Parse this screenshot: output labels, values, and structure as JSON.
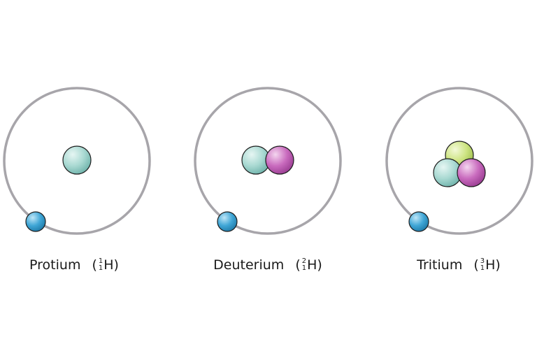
{
  "colors": {
    "orbit": "#a7a5aa",
    "electron": "#3b9fd1",
    "proton": "#9fd3cb",
    "neutron": "#c364b8",
    "neutron2": "#c8e07a",
    "outline": "#1d1d1d"
  },
  "isotopes": [
    {
      "name": "Protium",
      "mass": "1",
      "atomic": "1",
      "symbol": "H",
      "nucleons": [
        "proton"
      ]
    },
    {
      "name": "Deuterium",
      "mass": "2",
      "atomic": "1",
      "symbol": "H",
      "nucleons": [
        "proton",
        "neutron"
      ]
    },
    {
      "name": "Tritium",
      "mass": "3",
      "atomic": "1",
      "symbol": "H",
      "nucleons": [
        "neutron2",
        "proton",
        "neutron"
      ]
    }
  ]
}
